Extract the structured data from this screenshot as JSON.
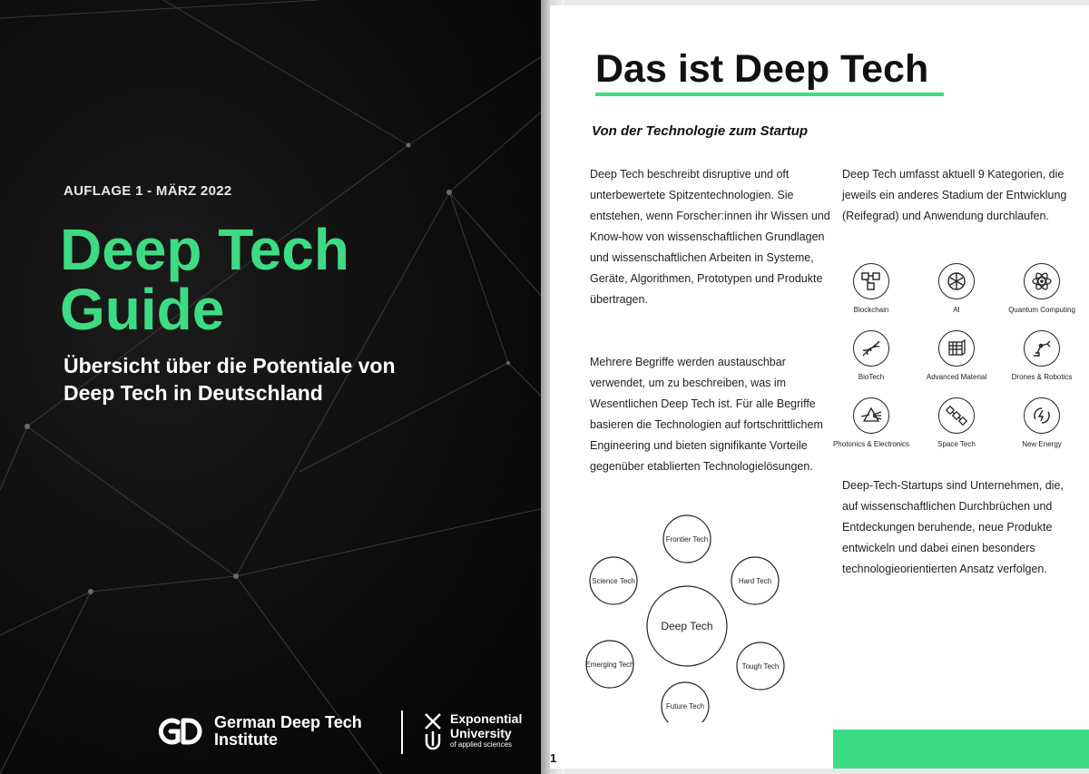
{
  "cover": {
    "edition": "AUFLAGE 1 - MÄRZ 2022",
    "title_line1": "Deep Tech",
    "title_line2": "Guide",
    "subtitle_line1": "Übersicht über die Potentiale von",
    "subtitle_line2": "Deep Tech in Deutschland",
    "logo_gd": {
      "line1": "German Deep Tech",
      "line2": "Institute"
    },
    "logo_eu": {
      "line1": "Exponential",
      "line2": "University",
      "line3": "of applied sciences"
    },
    "accent_color": "#3ddc84"
  },
  "page": {
    "title": "Das ist Deep Tech",
    "subtitle": "Von der Technologie zum Startup",
    "para1": "Deep Tech beschreibt disruptive und oft unterbewertete Spitzentechnologien. Sie entstehen, wenn Forscher:innen ihr Wissen und Know-how von wissenschaftlichen Grundlagen und wissenschaftlichen Arbeiten in Systeme, Geräte, Algorithmen, Prototypen und Produkte übertragen.",
    "para2": "Mehrere Begriffe werden austauschbar verwendet, um zu beschreiben, was im Wesentlichen Deep Tech ist. Für alle Begriffe basieren die Technologien auf fortschrittlichem Engineering und bieten signifikante Vorteile gegenüber etablierten Technologielösungen.",
    "para3": "Deep Tech umfasst aktuell 9 Kategorien, die jeweils ein anderes Stadium der Entwicklung (Reifegrad) und Anwendung durchlaufen.",
    "para4": "Deep-Tech-Startups sind Unternehmen, die, auf wissenschaftlichen Durchbrüchen und Entdeckungen beruhende, neue Produkte entwickeln und dabei einen besonders technologieorientierten Ansatz verfolgen.",
    "categories": [
      {
        "label": "Blockchain",
        "icon": "blockchain-icon"
      },
      {
        "label": "AI",
        "icon": "ai-brain-icon"
      },
      {
        "label": "Quantum Computing",
        "icon": "atom-icon"
      },
      {
        "label": "BioTech",
        "icon": "dna-icon"
      },
      {
        "label": "Advanced Material",
        "icon": "material-icon"
      },
      {
        "label": "Drones & Robotics",
        "icon": "robot-arm-icon"
      },
      {
        "label": "Photonics & Electronics",
        "icon": "prism-icon"
      },
      {
        "label": "Space Tech",
        "icon": "satellite-icon"
      },
      {
        "label": "New Energy",
        "icon": "energy-icon"
      }
    ],
    "diagram": {
      "center": "Deep Tech",
      "nodes": [
        "Frontier Tech",
        "Hard Tech",
        "Tough Tech",
        "Future Tech",
        "Emerging Tech",
        "Science Tech"
      ]
    },
    "page_number": "1"
  }
}
